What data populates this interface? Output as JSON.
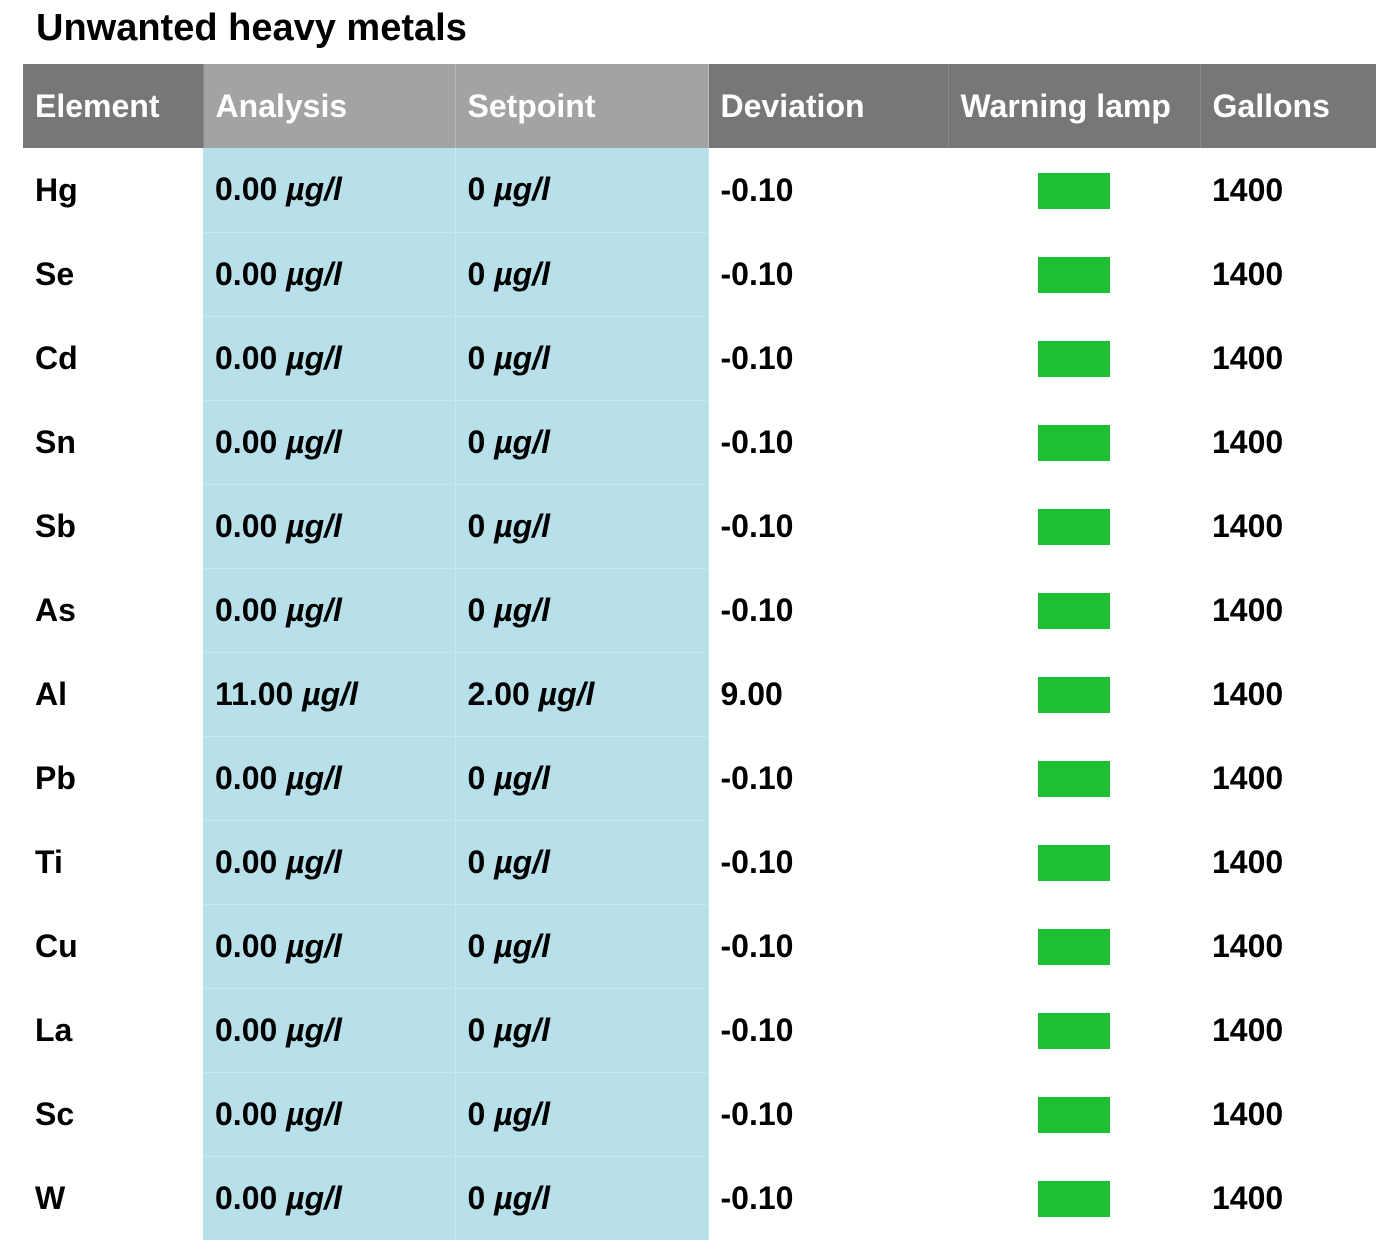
{
  "title": "Unwanted heavy metals",
  "colors": {
    "header_dark": "#777777",
    "header_light": "#a3a3a3",
    "shaded_cells": "#b8e0eb",
    "lamp_ok": "#1dbf33"
  },
  "columns": [
    "Element",
    "Analysis",
    "Setpoint",
    "Deviation",
    "Warning lamp",
    "Gallons"
  ],
  "unit": "µg/l",
  "rows": [
    {
      "element": "Hg",
      "analysis": "0.00",
      "setpoint": "0",
      "deviation": "-0.10",
      "lamp": "green",
      "gallons": "1400"
    },
    {
      "element": "Se",
      "analysis": "0.00",
      "setpoint": "0",
      "deviation": "-0.10",
      "lamp": "green",
      "gallons": "1400"
    },
    {
      "element": "Cd",
      "analysis": "0.00",
      "setpoint": "0",
      "deviation": "-0.10",
      "lamp": "green",
      "gallons": "1400"
    },
    {
      "element": "Sn",
      "analysis": "0.00",
      "setpoint": "0",
      "deviation": "-0.10",
      "lamp": "green",
      "gallons": "1400"
    },
    {
      "element": "Sb",
      "analysis": "0.00",
      "setpoint": "0",
      "deviation": "-0.10",
      "lamp": "green",
      "gallons": "1400"
    },
    {
      "element": "As",
      "analysis": "0.00",
      "setpoint": "0",
      "deviation": "-0.10",
      "lamp": "green",
      "gallons": "1400"
    },
    {
      "element": "Al",
      "analysis": "11.00",
      "setpoint": "2.00",
      "deviation": "9.00",
      "lamp": "green",
      "gallons": "1400"
    },
    {
      "element": "Pb",
      "analysis": "0.00",
      "setpoint": "0",
      "deviation": "-0.10",
      "lamp": "green",
      "gallons": "1400"
    },
    {
      "element": "Ti",
      "analysis": "0.00",
      "setpoint": "0",
      "deviation": "-0.10",
      "lamp": "green",
      "gallons": "1400"
    },
    {
      "element": "Cu",
      "analysis": "0.00",
      "setpoint": "0",
      "deviation": "-0.10",
      "lamp": "green",
      "gallons": "1400"
    },
    {
      "element": "La",
      "analysis": "0.00",
      "setpoint": "0",
      "deviation": "-0.10",
      "lamp": "green",
      "gallons": "1400"
    },
    {
      "element": "Sc",
      "analysis": "0.00",
      "setpoint": "0",
      "deviation": "-0.10",
      "lamp": "green",
      "gallons": "1400"
    },
    {
      "element": "W",
      "analysis": "0.00",
      "setpoint": "0",
      "deviation": "-0.10",
      "lamp": "green",
      "gallons": "1400"
    }
  ]
}
